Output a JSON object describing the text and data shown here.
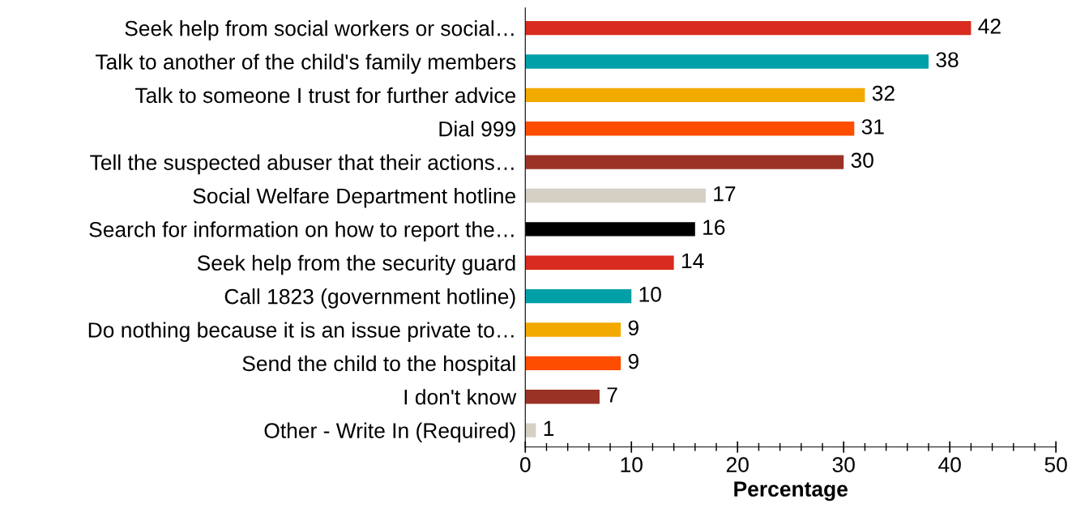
{
  "chart_data": {
    "type": "bar",
    "orientation": "horizontal",
    "xlabel": "Percentage",
    "categories": [
      "Seek help from social workers or social…",
      "Talk to another of the child's family members",
      "Talk to someone I trust for further advice",
      "Dial 999",
      "Tell the suspected abuser that their actions…",
      "Social Welfare Department hotline",
      "Search for information on how to report the…",
      "Seek help from the security guard",
      "Call 1823 (government hotline)",
      "Do nothing because it is an issue private to…",
      "Send the child to the hospital",
      "I don't know",
      "Other - Write In (Required)"
    ],
    "values": [
      42,
      38,
      32,
      31,
      30,
      17,
      16,
      14,
      10,
      9,
      9,
      7,
      1
    ],
    "colors": [
      "#d92b1f",
      "#00a0a8",
      "#f2a900",
      "#ff4d00",
      "#9b3226",
      "#d6d0c4",
      "#000000",
      "#d92b1f",
      "#00a0a8",
      "#f2a900",
      "#ff4d00",
      "#9b3226",
      "#d6d0c4"
    ],
    "xlim": [
      0,
      50
    ],
    "xticks": [
      0,
      {
        "value": 2,
        "label": null
      },
      {
        "value": 4,
        "label": null
      },
      {
        "value": 6,
        "label": null
      },
      {
        "value": 8,
        "label": null
      },
      10,
      {
        "value": 12,
        "label": null
      },
      {
        "value": 14,
        "label": null
      },
      {
        "value": 16,
        "label": null
      },
      {
        "value": 18,
        "label": null
      },
      20,
      {
        "value": 22,
        "label": null
      },
      {
        "value": 24,
        "label": null
      },
      {
        "value": 26,
        "label": null
      },
      {
        "value": 28,
        "label": null
      },
      30,
      {
        "value": 32,
        "label": null
      },
      {
        "value": 34,
        "label": null
      },
      {
        "value": 36,
        "label": null
      },
      {
        "value": 38,
        "label": null
      },
      40,
      {
        "value": 42,
        "label": null
      },
      {
        "value": 44,
        "label": null
      },
      {
        "value": 46,
        "label": null
      },
      {
        "value": 48,
        "label": null
      },
      50
    ],
    "data_labels": true,
    "grid": false,
    "legend": false
  }
}
